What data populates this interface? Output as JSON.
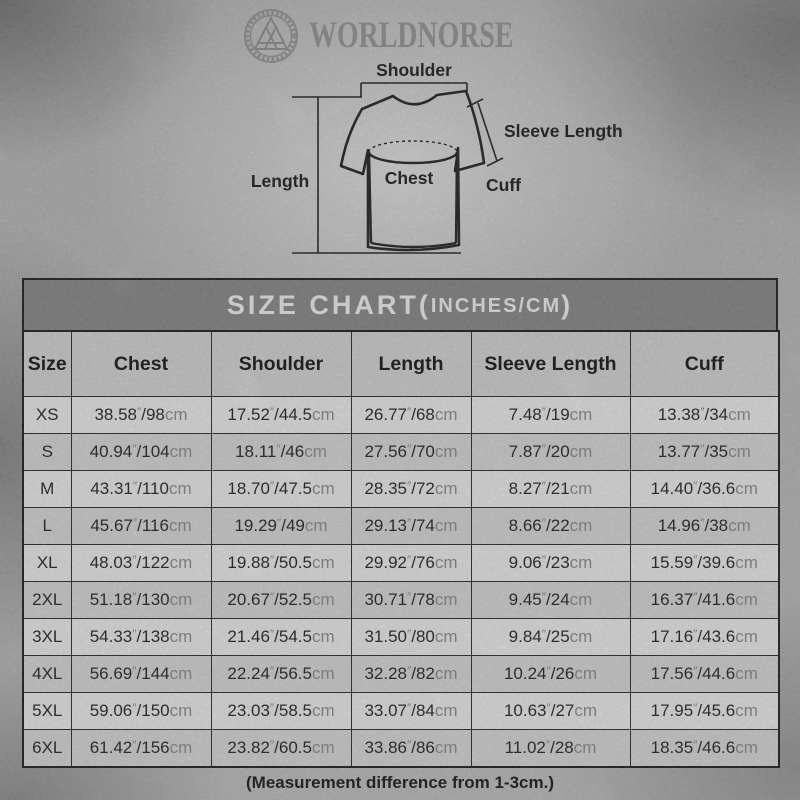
{
  "brand": {
    "name": "WORLDNORSE",
    "logo": "valknut-emblem"
  },
  "colors": {
    "title_bar": "#8c8c8c",
    "header_row": "#e0e0e0",
    "row": "#fbfbfb",
    "row_alt": "#e3e3e3",
    "ink": "#1a1a1a",
    "unit_gray": "#8f8f8f",
    "logo_gray": "#989898"
  },
  "diagram": {
    "labels": {
      "shoulder": "Shoulder",
      "sleeve_length": "Sleeve Length",
      "length": "Length",
      "chest": "Chest",
      "cuff": "Cuff"
    }
  },
  "size_chart": {
    "title_main": "SIZE CHART(",
    "title_units": "INCHES/CM",
    "title_close": ")",
    "columns": [
      "Size",
      "Chest",
      "Shoulder",
      "Length",
      "Sleeve Length",
      "Cuff"
    ],
    "units": {
      "inch_mark": "″",
      "separator": "/",
      "cm_label": "cm"
    },
    "measure_keys": [
      "chest",
      "shoulder",
      "length",
      "sleeve_length",
      "cuff"
    ],
    "rows": [
      {
        "size": "XS",
        "chest": {
          "in": "38.58",
          "cm": "98"
        },
        "shoulder": {
          "in": "17.52",
          "cm": "44.5"
        },
        "length": {
          "in": "26.77",
          "cm": "68"
        },
        "sleeve_length": {
          "in": "7.48",
          "cm": "19"
        },
        "cuff": {
          "in": "13.38",
          "cm": "34"
        }
      },
      {
        "size": "S",
        "chest": {
          "in": "40.94",
          "cm": "104"
        },
        "shoulder": {
          "in": "18.11",
          "cm": "46"
        },
        "length": {
          "in": "27.56",
          "cm": "70"
        },
        "sleeve_length": {
          "in": "7.87",
          "cm": "20"
        },
        "cuff": {
          "in": "13.77",
          "cm": "35"
        }
      },
      {
        "size": "M",
        "chest": {
          "in": "43.31",
          "cm": "110"
        },
        "shoulder": {
          "in": "18.70",
          "cm": "47.5"
        },
        "length": {
          "in": "28.35",
          "cm": "72"
        },
        "sleeve_length": {
          "in": "8.27",
          "cm": "21"
        },
        "cuff": {
          "in": "14.40",
          "cm": "36.6"
        }
      },
      {
        "size": "L",
        "chest": {
          "in": "45.67",
          "cm": "116"
        },
        "shoulder": {
          "in": "19.29",
          "cm": "49"
        },
        "length": {
          "in": "29.13",
          "cm": "74"
        },
        "sleeve_length": {
          "in": "8.66",
          "cm": "22"
        },
        "cuff": {
          "in": "14.96",
          "cm": "38"
        }
      },
      {
        "size": "XL",
        "chest": {
          "in": "48.03",
          "cm": "122"
        },
        "shoulder": {
          "in": "19.88",
          "cm": "50.5"
        },
        "length": {
          "in": "29.92",
          "cm": "76"
        },
        "sleeve_length": {
          "in": "9.06",
          "cm": "23"
        },
        "cuff": {
          "in": "15.59",
          "cm": "39.6"
        }
      },
      {
        "size": "2XL",
        "chest": {
          "in": "51.18",
          "cm": "130"
        },
        "shoulder": {
          "in": "20.67",
          "cm": "52.5"
        },
        "length": {
          "in": "30.71",
          "cm": "78"
        },
        "sleeve_length": {
          "in": "9.45",
          "cm": "24"
        },
        "cuff": {
          "in": "16.37",
          "cm": "41.6"
        }
      },
      {
        "size": "3XL",
        "chest": {
          "in": "54.33",
          "cm": "138"
        },
        "shoulder": {
          "in": "21.46",
          "cm": "54.5"
        },
        "length": {
          "in": "31.50",
          "cm": "80"
        },
        "sleeve_length": {
          "in": "9.84",
          "cm": "25"
        },
        "cuff": {
          "in": "17.16",
          "cm": "43.6"
        }
      },
      {
        "size": "4XL",
        "chest": {
          "in": "56.69",
          "cm": "144"
        },
        "shoulder": {
          "in": "22.24",
          "cm": "56.5"
        },
        "length": {
          "in": "32.28",
          "cm": "82"
        },
        "sleeve_length": {
          "in": "10.24",
          "cm": "26"
        },
        "cuff": {
          "in": "17.56",
          "cm": "44.6"
        }
      },
      {
        "size": "5XL",
        "chest": {
          "in": "59.06",
          "cm": "150"
        },
        "shoulder": {
          "in": "23.03",
          "cm": "58.5"
        },
        "length": {
          "in": "33.07",
          "cm": "84"
        },
        "sleeve_length": {
          "in": "10.63",
          "cm": "27"
        },
        "cuff": {
          "in": "17.95",
          "cm": "45.6"
        }
      },
      {
        "size": "6XL",
        "chest": {
          "in": "61.42",
          "cm": "156"
        },
        "shoulder": {
          "in": "23.82",
          "cm": "60.5"
        },
        "length": {
          "in": "33.86",
          "cm": "86"
        },
        "sleeve_length": {
          "in": "11.02",
          "cm": "28"
        },
        "cuff": {
          "in": "18.35",
          "cm": "46.6"
        }
      }
    ],
    "note": "(Measurement difference from 1-3cm.)"
  }
}
